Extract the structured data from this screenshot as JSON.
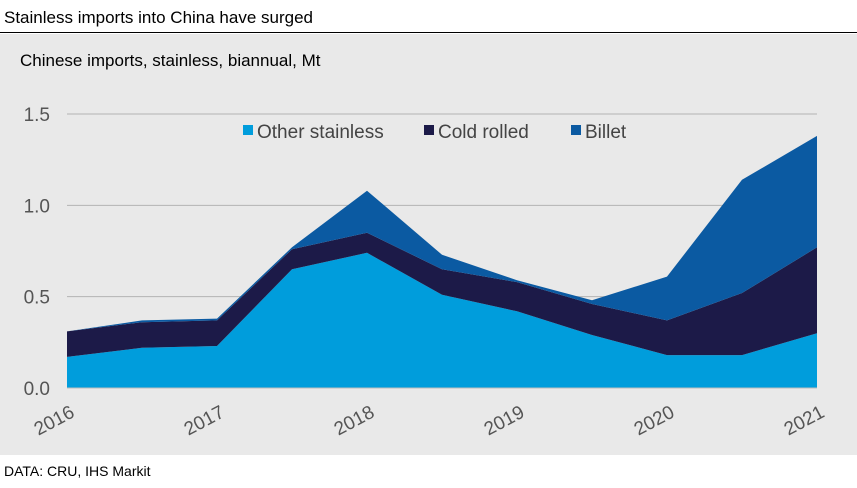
{
  "header": {
    "title": "Stainless imports into China have surged"
  },
  "footer": {
    "source": "DATA: CRU, IHS Markit"
  },
  "colors": {
    "panel_bg": "#e9e9e9",
    "other_stainless": "#009ddc",
    "cold_rolled": "#1c1a48",
    "billet": "#0b5aa2",
    "gridline": "#b3b3b3"
  },
  "chart_data": {
    "type": "area",
    "stacked": true,
    "subtitle": "Chinese imports, stainless, biannual, Mt",
    "xlabel": "",
    "ylabel": "",
    "x": [
      2016,
      2016.5,
      2017,
      2017.5,
      2018,
      2018.5,
      2019,
      2019.5,
      2020,
      2020.5,
      2021
    ],
    "x_tick_labels": [
      "2016",
      "2017",
      "2018",
      "2019",
      "2020",
      "2021"
    ],
    "y_ticks": [
      "0.0",
      "0.5",
      "1.0",
      "1.5"
    ],
    "ylim": [
      0,
      1.5
    ],
    "grid": "horizontal",
    "legend_position": "top-center",
    "series": [
      {
        "name": "Other stainless",
        "color": "#009ddc",
        "values": [
          0.17,
          0.22,
          0.23,
          0.65,
          0.74,
          0.51,
          0.42,
          0.29,
          0.18,
          0.18,
          0.3
        ]
      },
      {
        "name": "Cold rolled",
        "color": "#1c1a48",
        "values": [
          0.14,
          0.14,
          0.14,
          0.11,
          0.11,
          0.14,
          0.16,
          0.17,
          0.19,
          0.34,
          0.47
        ]
      },
      {
        "name": "Billet",
        "color": "#0b5aa2",
        "values": [
          0.0,
          0.01,
          0.01,
          0.01,
          0.23,
          0.08,
          0.01,
          0.02,
          0.24,
          0.62,
          0.61
        ]
      }
    ]
  }
}
